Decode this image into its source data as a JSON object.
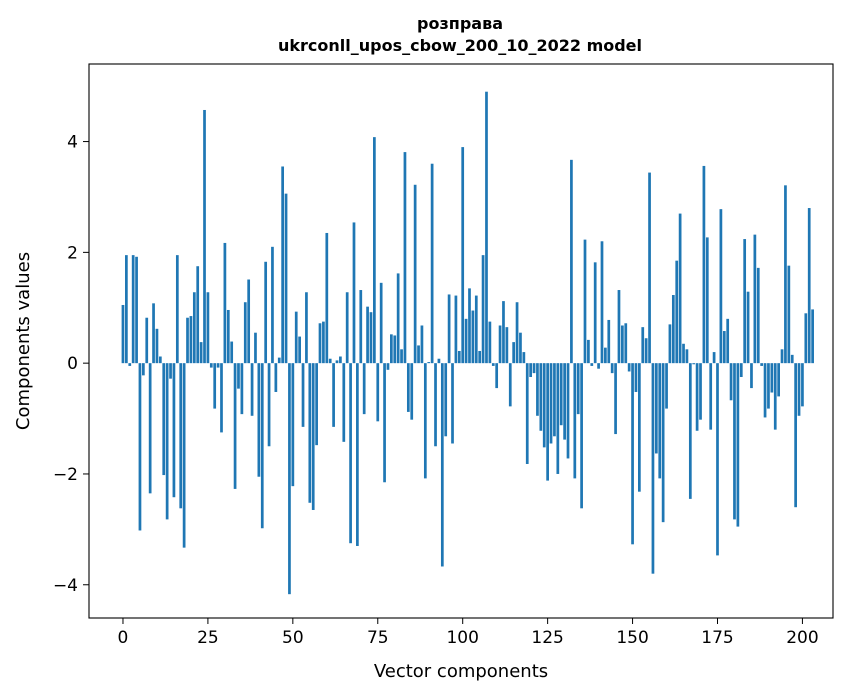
{
  "chart_data": {
    "type": "bar",
    "title": "розправа",
    "subtitle": "ukrconll_upos_cbow_200_10_2022 model",
    "xlabel": "Vector components",
    "ylabel": "Components values",
    "xlim": [
      -10,
      209
    ],
    "ylim": [
      -4.6,
      5.4
    ],
    "xticks": [
      0,
      25,
      50,
      75,
      100,
      125,
      150,
      175,
      200
    ],
    "yticks": [
      -4,
      -2,
      0,
      2,
      4
    ],
    "grid": false,
    "colors": {
      "bar": "#1f77b4"
    },
    "values": [
      1.05,
      1.95,
      -0.05,
      1.95,
      1.92,
      -3.02,
      -0.22,
      0.82,
      -2.35,
      1.08,
      0.62,
      0.12,
      -2.02,
      -2.82,
      -0.28,
      -2.42,
      1.95,
      -2.62,
      -3.33,
      0.82,
      0.85,
      1.28,
      1.75,
      0.38,
      4.57,
      1.28,
      -0.08,
      -0.82,
      -0.08,
      -1.25,
      2.17,
      0.96,
      0.39,
      -2.27,
      -0.46,
      -0.92,
      1.1,
      1.51,
      -0.95,
      0.55,
      -2.05,
      -2.98,
      1.83,
      -1.5,
      2.1,
      -0.52,
      0.1,
      3.55,
      3.06,
      -4.17,
      -2.22,
      0.93,
      0.48,
      -1.15,
      1.28,
      -2.52,
      -2.65,
      -1.48,
      0.72,
      0.75,
      2.35,
      0.08,
      -1.15,
      0.05,
      0.12,
      -1.42,
      1.28,
      -3.25,
      2.54,
      -3.3,
      1.32,
      -0.92,
      1.02,
      0.92,
      4.08,
      -1.05,
      1.45,
      -2.15,
      -0.12,
      0.52,
      0.5,
      1.62,
      0.25,
      3.81,
      -0.88,
      -1.02,
      3.22,
      0.32,
      0.68,
      -2.08,
      0.02,
      3.6,
      -1.5,
      0.08,
      -3.67,
      -1.32,
      1.24,
      -1.45,
      1.22,
      0.22,
      3.9,
      0.8,
      1.35,
      0.95,
      1.22,
      0.22,
      1.95,
      4.9,
      0.75,
      -0.05,
      -0.45,
      0.68,
      1.12,
      0.65,
      -0.78,
      0.38,
      1.1,
      0.55,
      0.2,
      -1.82,
      -0.25,
      -0.18,
      -0.95,
      -1.22,
      -1.52,
      -2.12,
      -1.45,
      -1.32,
      -2.0,
      -1.12,
      -1.38,
      -1.72,
      3.67,
      -2.08,
      -0.92,
      -2.62,
      2.23,
      0.42,
      -0.05,
      1.82,
      -0.1,
      2.2,
      0.28,
      0.78,
      -0.18,
      -1.28,
      1.32,
      0.68,
      0.72,
      -0.15,
      -3.27,
      -0.52,
      -2.32,
      0.65,
      0.45,
      3.44,
      -3.8,
      -1.63,
      -2.08,
      -2.87,
      -0.82,
      0.7,
      1.23,
      1.85,
      2.7,
      0.35,
      0.25,
      -2.45,
      -0.02,
      -1.22,
      -1.02,
      3.56,
      2.27,
      -1.2,
      0.2,
      -3.47,
      2.78,
      0.58,
      0.8,
      -0.67,
      -2.82,
      -2.95,
      -0.25,
      2.24,
      1.29,
      -0.45,
      2.32,
      1.72,
      -0.05,
      -0.98,
      -0.82,
      -0.53,
      -1.2,
      -0.6,
      0.25,
      3.21,
      1.76,
      0.15,
      -2.6,
      -0.95,
      -0.78,
      0.9,
      2.8,
      0.97
    ]
  }
}
